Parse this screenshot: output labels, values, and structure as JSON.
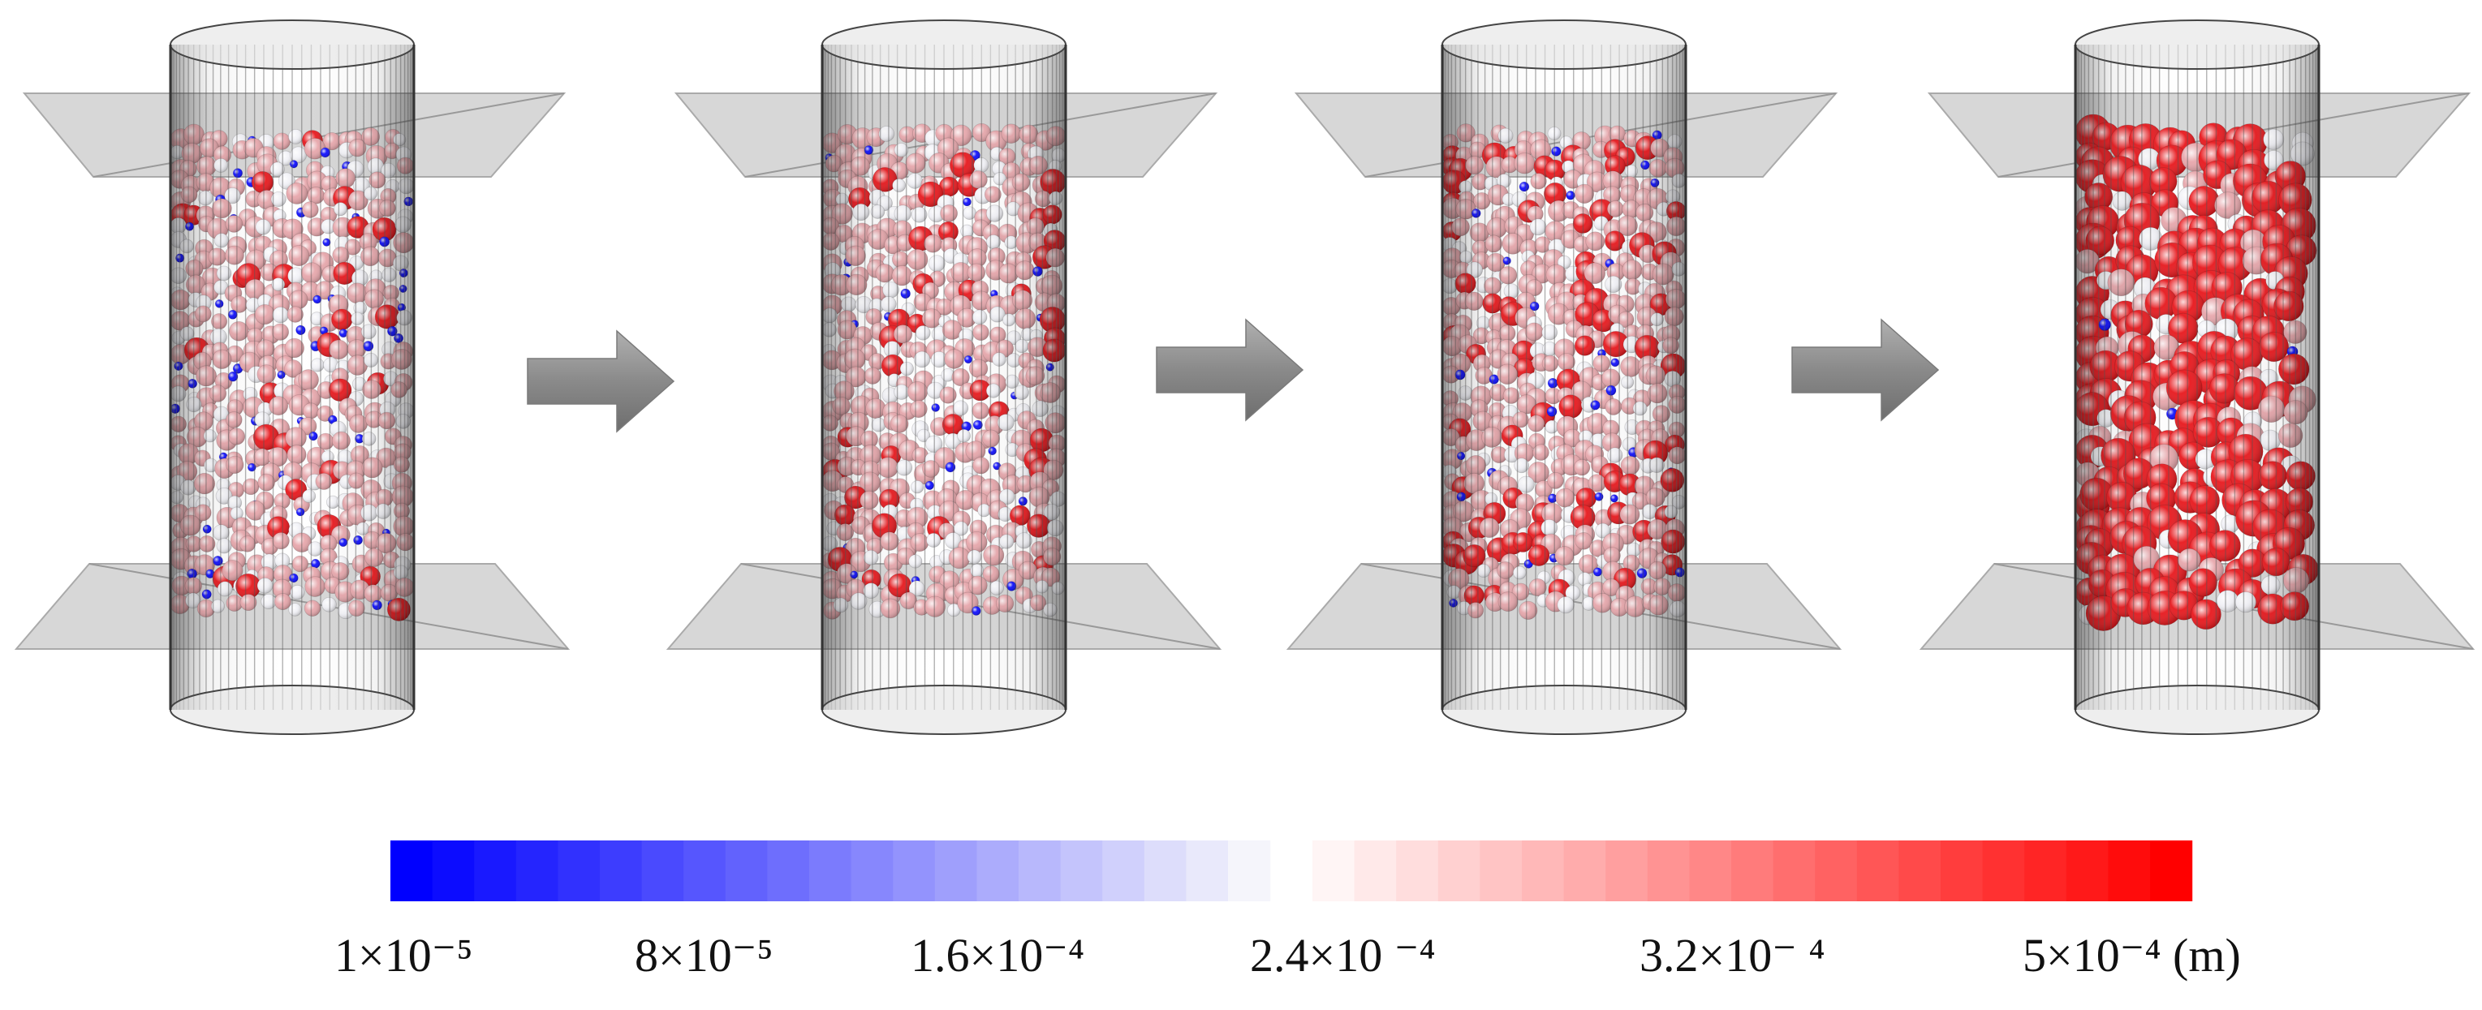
{
  "figure": {
    "stages": [
      {
        "id": "stage-1",
        "red_fraction": 0.05,
        "pink_fraction": 0.55,
        "white_fraction": 0.28,
        "blue_fraction": 0.12
      },
      {
        "id": "stage-2",
        "red_fraction": 0.08,
        "pink_fraction": 0.62,
        "white_fraction": 0.24,
        "blue_fraction": 0.06
      },
      {
        "id": "stage-3",
        "red_fraction": 0.14,
        "pink_fraction": 0.62,
        "white_fraction": 0.2,
        "blue_fraction": 0.04
      },
      {
        "id": "stage-4",
        "red_fraction": 0.72,
        "pink_fraction": 0.14,
        "white_fraction": 0.13,
        "blue_fraction": 0.01
      }
    ],
    "colors": {
      "blue": "#0b0bff",
      "white": "#f2f2f7",
      "pink": "#e7a6ab",
      "red": "#e8161b",
      "arrow": "#8c8c8c",
      "cylinder": "#555555",
      "plate": "#c9c9c9"
    }
  },
  "colorbar": {
    "unit": "(m)",
    "gradient_left": [
      "#0000ff",
      "#f5f5fb"
    ],
    "gradient_right": [
      "#fff5f5",
      "#ff0000"
    ],
    "ticks": [
      {
        "label": "1×10⁻⁵"
      },
      {
        "label": "8×10⁻⁵"
      },
      {
        "label": "1.6×10⁻⁴"
      },
      {
        "label": "2.4×10 ⁻⁴"
      },
      {
        "label": "3.2×10⁻ ⁴"
      },
      {
        "label": "5×10⁻⁴ (m)"
      }
    ]
  }
}
